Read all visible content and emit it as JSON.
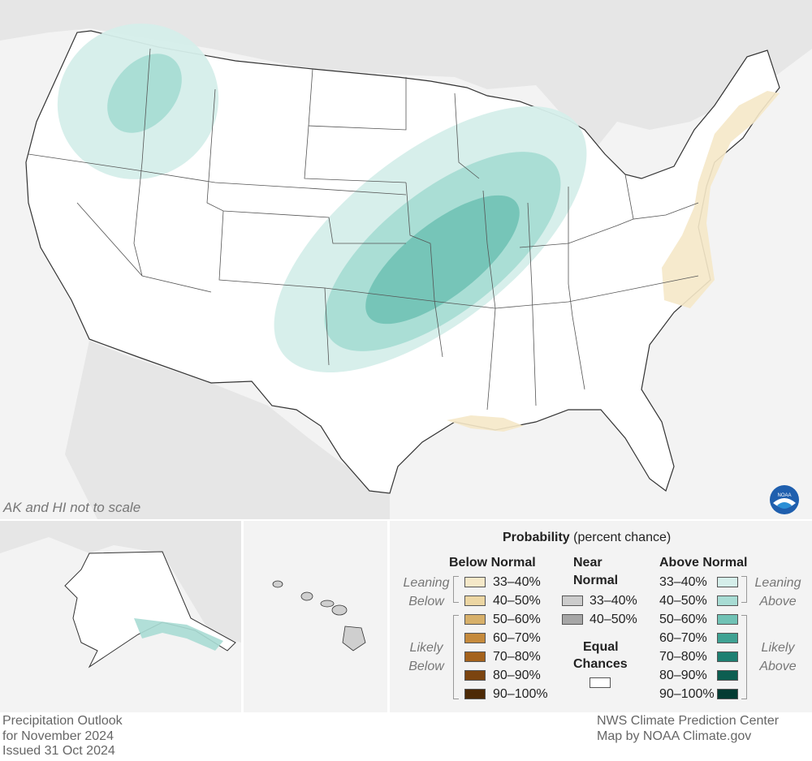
{
  "map": {
    "note": "AK and HI not to scale",
    "background_color": "#f3f3f3",
    "land_color": "#ffffff",
    "border_color": "#333333",
    "icon": "noaa-logo-icon"
  },
  "legend": {
    "title_bold": "Probability",
    "title_rest": " (percent chance)",
    "below": {
      "header": "Below Normal",
      "leaning": [
        "Leaning",
        "Below"
      ],
      "likely": [
        "Likely",
        "Below"
      ],
      "bins": [
        {
          "label": "33–40%",
          "color": "#f5e8c8"
        },
        {
          "label": "40–50%",
          "color": "#ecd6a3"
        },
        {
          "label": "50–60%",
          "color": "#d7b06a"
        },
        {
          "label": "60–70%",
          "color": "#c58a3c"
        },
        {
          "label": "70–80%",
          "color": "#a4621c"
        },
        {
          "label": "80–90%",
          "color": "#7b4410"
        },
        {
          "label": "90–100%",
          "color": "#4d2a06"
        }
      ]
    },
    "near": {
      "header1": "Near",
      "header2": "Normal",
      "bins": [
        {
          "label": "33–40%",
          "color": "#cccccc"
        },
        {
          "label": "40–50%",
          "color": "#a6a6a6"
        }
      ]
    },
    "equal": {
      "label1": "Equal",
      "label2": "Chances",
      "color": "#ffffff"
    },
    "above": {
      "header": "Above Normal",
      "leaning": [
        "Leaning",
        "Above"
      ],
      "likely": [
        "Likely",
        "Above"
      ],
      "bins": [
        {
          "label": "33–40%",
          "color": "#d5eeea"
        },
        {
          "label": "40–50%",
          "color": "#a8dcd4"
        },
        {
          "label": "50–60%",
          "color": "#70c2b5"
        },
        {
          "label": "60–70%",
          "color": "#3fa293"
        },
        {
          "label": "70–80%",
          "color": "#1e8072"
        },
        {
          "label": "80–90%",
          "color": "#0d5e51"
        },
        {
          "label": "90–100%",
          "color": "#043c33"
        }
      ]
    }
  },
  "footer": {
    "left": [
      "Precipitation Outlook",
      "for November 2024",
      "Issued 31 Oct 2024"
    ],
    "right": [
      "NWS Climate Prediction Center",
      "Map by NOAA Climate.gov"
    ]
  }
}
